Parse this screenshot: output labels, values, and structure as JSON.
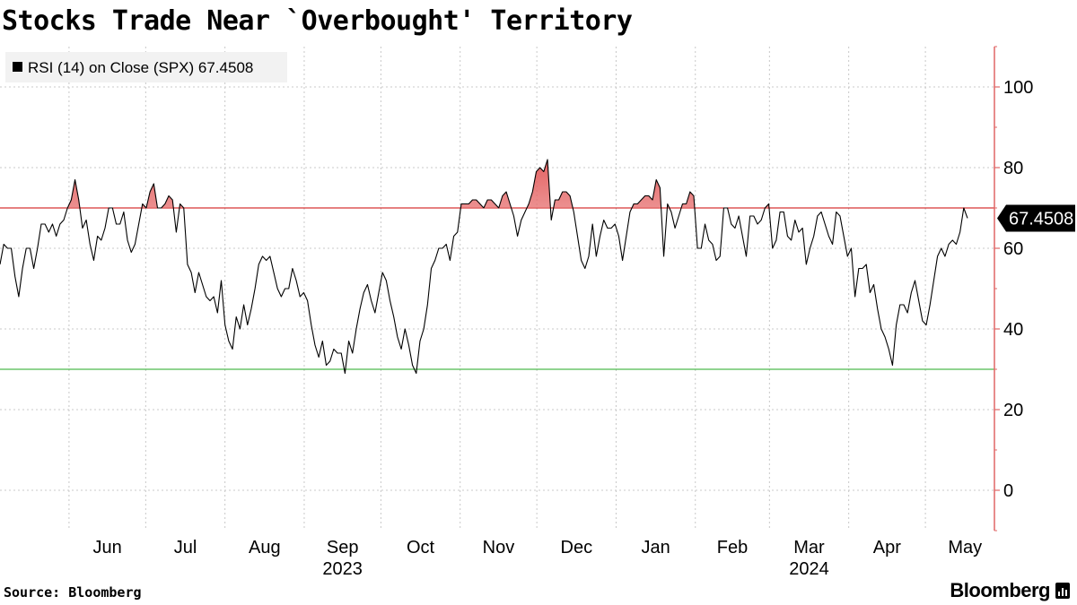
{
  "chart_data": {
    "type": "line",
    "title": "Stocks Trade Near `Overbought' Territory",
    "legend": {
      "label": "RSI (14)  on Close (SPX) 67.4508",
      "placement": "top-left"
    },
    "series": [
      {
        "name": "RSI (14)  on Close (SPX)",
        "color": "#000000",
        "last_value_label": "67.4508",
        "x_start": "2023-05-05",
        "values": [
          56,
          61,
          60,
          60,
          53,
          48,
          55,
          60,
          60,
          55,
          60,
          66,
          66,
          64,
          66,
          63,
          66,
          67,
          70,
          72,
          77,
          72,
          65,
          67,
          61,
          57,
          63,
          62,
          65,
          70,
          70,
          66,
          66,
          69,
          62,
          59,
          61,
          66,
          71,
          70,
          74,
          76,
          70,
          70,
          71,
          73,
          72,
          64,
          71,
          70,
          56,
          54,
          49,
          54,
          51,
          48,
          47,
          48,
          44,
          52,
          41,
          37,
          35,
          43,
          40,
          46,
          41,
          45,
          50,
          56,
          58,
          57,
          58,
          54,
          50,
          48,
          50,
          50,
          55,
          52,
          48,
          49,
          47,
          41,
          36,
          33,
          37,
          31,
          32,
          35,
          34,
          34,
          29,
          37,
          34,
          40,
          45,
          49,
          51,
          47,
          44,
          49,
          54,
          52,
          47,
          43,
          38,
          35,
          40,
          36,
          31,
          29,
          37,
          40,
          46,
          55,
          57,
          60,
          60,
          61,
          57,
          63,
          64,
          71,
          71,
          71,
          72,
          72,
          71,
          70,
          72,
          72,
          71,
          70,
          73,
          74,
          71,
          68,
          63,
          67,
          69,
          71,
          74,
          79,
          80,
          79,
          82,
          67,
          72,
          72,
          74,
          74,
          73,
          69,
          63,
          57,
          55,
          58,
          66,
          58,
          63,
          67,
          65,
          65,
          66,
          63,
          57,
          63,
          69,
          71,
          71,
          72,
          73,
          73,
          72,
          77,
          75,
          58,
          71,
          69,
          65,
          68,
          71,
          71,
          74,
          73,
          60,
          60,
          66,
          62,
          61,
          57,
          58,
          70,
          70,
          66,
          65,
          68,
          63,
          58,
          68,
          68,
          66,
          67,
          70,
          71,
          60,
          62,
          69,
          69,
          63,
          62,
          67,
          64,
          65,
          56,
          60,
          63,
          68,
          69,
          66,
          63,
          61,
          69,
          68,
          63,
          58,
          60,
          48,
          55,
          55,
          56,
          49,
          51,
          45,
          40,
          38,
          35,
          31,
          41,
          46,
          46,
          44,
          49,
          52,
          47,
          42,
          41,
          46,
          52,
          58,
          60,
          58,
          61,
          62,
          61,
          64,
          70,
          67.45
        ]
      }
    ],
    "y_axis": {
      "min": -10,
      "max": 110,
      "ticks": [
        0,
        20,
        40,
        60,
        80,
        100
      ],
      "tick_labels": [
        "0",
        "20",
        "40",
        "60",
        "80",
        "100"
      ],
      "position": "right"
    },
    "x_axis": {
      "range": [
        "2023-05-05",
        "2024-05-28"
      ],
      "months": [
        {
          "label": "Jun",
          "date": "2023-06-01"
        },
        {
          "label": "Jul",
          "date": "2023-07-01"
        },
        {
          "label": "Aug",
          "date": "2023-08-01"
        },
        {
          "label": "Sep",
          "date": "2023-09-01"
        },
        {
          "label": "Oct",
          "date": "2023-10-01"
        },
        {
          "label": "Nov",
          "date": "2023-11-01"
        },
        {
          "label": "Dec",
          "date": "2023-12-01"
        },
        {
          "label": "Jan",
          "date": "2024-01-01"
        },
        {
          "label": "Feb",
          "date": "2024-02-01"
        },
        {
          "label": "Mar",
          "date": "2024-03-01"
        },
        {
          "label": "Apr",
          "date": "2024-04-01"
        },
        {
          "label": "May",
          "date": "2024-05-01"
        }
      ],
      "years": [
        {
          "label": "2023",
          "date": "2023-09-01"
        },
        {
          "label": "2024",
          "date": "2024-03-01"
        }
      ]
    },
    "reference_lines": [
      {
        "value": 70,
        "color": "#cc0000",
        "role": "overbought"
      },
      {
        "value": 30,
        "color": "#22aa22",
        "role": "oversold"
      }
    ],
    "overbought_fill_color": "#e05050",
    "grid": true,
    "axis_color": "#e06666",
    "grid_color": "#c8c8c8"
  },
  "footer": {
    "source": "Source: Bloomberg",
    "brand": "Bloomberg"
  }
}
